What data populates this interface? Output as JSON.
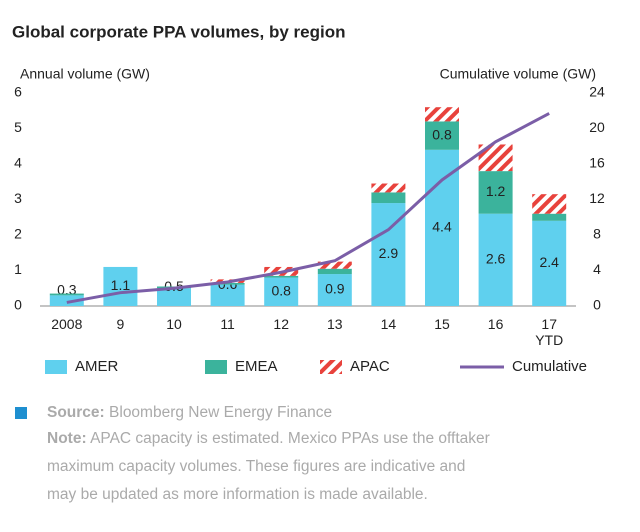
{
  "chart_data": {
    "type": "bar",
    "title": "Global corporate PPA volumes, by region",
    "y_label": "Annual volume (GW)",
    "y2_label": "Cumulative volume (GW)",
    "categories": [
      "2008",
      "9",
      "10",
      "11",
      "12",
      "13",
      "14",
      "15",
      "16",
      "17 YTD"
    ],
    "stacked": true,
    "series": [
      {
        "name": "AMER",
        "color": "#5fd0ee",
        "values": [
          0.3,
          1.1,
          0.5,
          0.6,
          0.8,
          0.9,
          2.9,
          4.4,
          2.6,
          2.4
        ]
      },
      {
        "name": "EMEA",
        "color": "#3bb39c",
        "values": [
          0.05,
          0,
          0.05,
          0.05,
          0.05,
          0.15,
          0.3,
          0.8,
          1.2,
          0.2
        ],
        "value_labels": [
          null,
          null,
          null,
          null,
          null,
          null,
          null,
          "0.8",
          "1.2",
          null
        ]
      },
      {
        "name": "APAC",
        "color": "#e8423c",
        "hatched": true,
        "values": [
          0,
          0,
          0,
          0.1,
          0.25,
          0.2,
          0.25,
          0.4,
          0.75,
          0.55
        ]
      },
      {
        "name": "Cumulative",
        "color": "#7b5ea7",
        "type": "line",
        "axis": "y2",
        "values": [
          0.4,
          1.5,
          2.0,
          2.7,
          3.8,
          5.1,
          8.6,
          14.2,
          18.5,
          21.7
        ]
      }
    ],
    "ylim": [
      0,
      6
    ],
    "yticks": [
      0,
      1,
      2,
      3,
      4,
      5,
      6
    ],
    "y2lim": [
      0,
      24
    ],
    "y2ticks": [
      0,
      4,
      8,
      12,
      16,
      20,
      24
    ],
    "legend": "bottom",
    "source_label": "Source:",
    "source": "Bloomberg New Energy Finance",
    "note_label": "Note:",
    "note_lines": [
      "APAC capacity is estimated. Mexico PPAs use the offtaker",
      "maximum capacity volumes. These figures are indicative and",
      "may be updated as more information is made available."
    ]
  }
}
